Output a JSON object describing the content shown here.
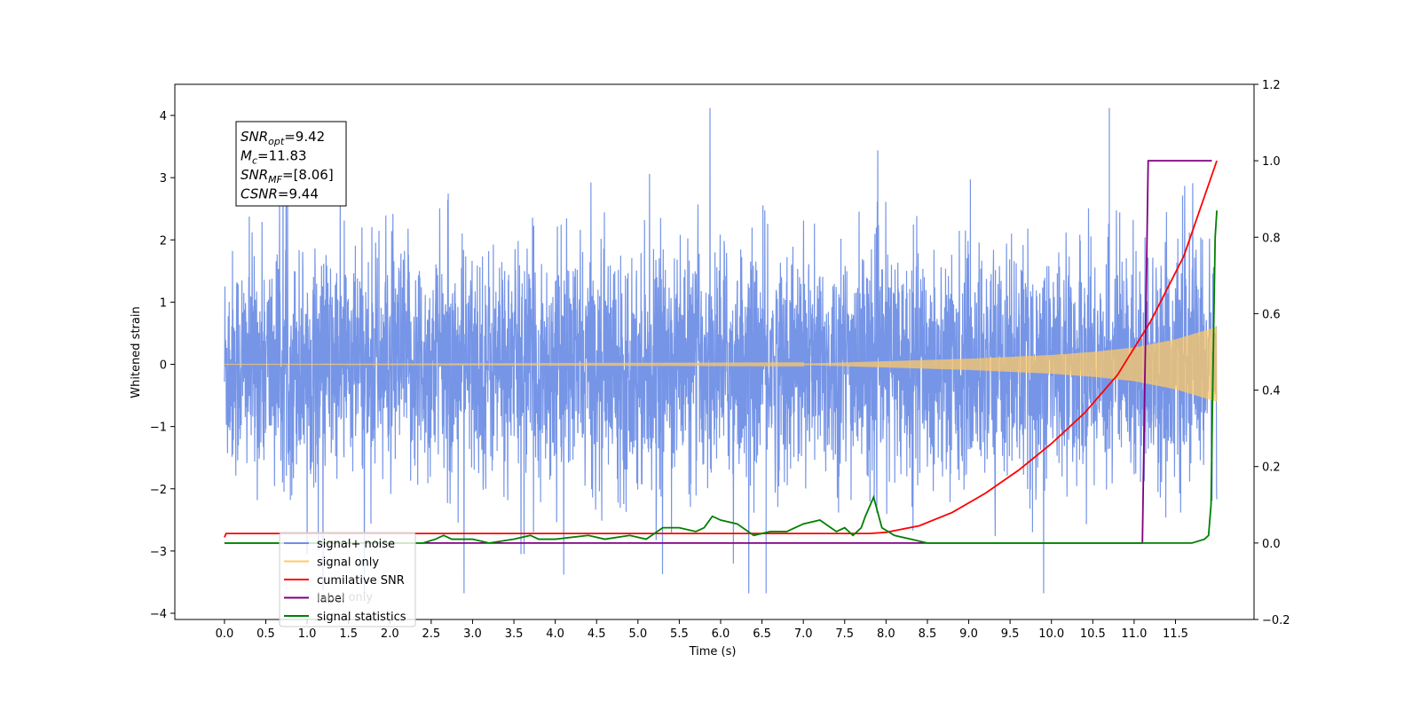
{
  "chart_data": {
    "type": "line",
    "xlabel": "Time (s)",
    "ylabel": "Whitened strain",
    "xlim": [
      -0.6,
      12.45
    ],
    "ylim": [
      -4.1,
      4.5
    ],
    "ylim_right": [
      -0.2,
      1.2
    ],
    "x_ticks": [
      0.0,
      0.5,
      1.0,
      1.5,
      2.0,
      2.5,
      3.0,
      3.5,
      4.0,
      4.5,
      5.0,
      5.5,
      6.0,
      6.5,
      7.0,
      7.5,
      8.0,
      8.5,
      9.0,
      9.5,
      10.0,
      10.5,
      11.0,
      11.5
    ],
    "x_tick_labels": [
      "0.0",
      "0.5",
      "1.0",
      "1.5",
      "2.0",
      "2.5",
      "3.0",
      "3.5",
      "4.0",
      "4.5",
      "5.0",
      "5.5",
      "6.0",
      "6.5",
      "7.0",
      "7.5",
      "8.0",
      "8.5",
      "9.0",
      "9.5",
      "10.0",
      "10.5",
      "11.0",
      "11.5"
    ],
    "y_ticks": [
      -4,
      -3,
      -2,
      -1,
      0,
      1,
      2,
      3,
      4
    ],
    "y_tick_labels": [
      "−4",
      "−3",
      "−2",
      "−1",
      "0",
      "1",
      "2",
      "3",
      "4"
    ],
    "y2_ticks": [
      -0.2,
      0.0,
      0.2,
      0.4,
      0.6,
      0.8,
      1.0,
      1.2
    ],
    "y2_tick_labels": [
      "−0.2",
      "0.0",
      "0.2",
      "0.4",
      "0.6",
      "0.8",
      "1.0",
      "1.2"
    ],
    "grid": false,
    "legend_position": "lower-left",
    "legend": [
      {
        "label": "signal+ noise",
        "color": "#6f8fe6"
      },
      {
        "label": "signal only",
        "color": "#ffc966"
      },
      {
        "label": "cumilative SNR",
        "color": "#ff0000"
      },
      {
        "label": "label",
        "color": "#800080"
      },
      {
        "label": "signal statistics",
        "color": "#008000"
      }
    ],
    "hidden_legend_fragment": "label only",
    "annotation": [
      {
        "main": "SNR",
        "sub": "opt",
        "rest": "=9.42"
      },
      {
        "main": "M",
        "sub": "c",
        "rest": "=11.83"
      },
      {
        "main": "SNR",
        "sub": "MF",
        "rest": "=[8.06]"
      },
      {
        "main": "CSNR",
        "sub": "",
        "rest": "=9.44"
      }
    ],
    "series": [
      {
        "name": "signal+ noise",
        "axis": "left",
        "color": "#6f8fe6",
        "x_range": [
          0.0,
          12.0
        ],
        "typical_amplitude": 1.45,
        "max_value": 4.12,
        "min_value": -3.68
      },
      {
        "name": "signal only",
        "axis": "left",
        "color": "#ffc966",
        "x_range": [
          0.0,
          12.0
        ],
        "envelope_x": [
          0.0,
          7.0,
          8.0,
          9.0,
          10.0,
          10.5,
          11.0,
          11.5,
          12.0
        ],
        "envelope_amp": [
          0.0,
          0.01,
          0.05,
          0.09,
          0.15,
          0.2,
          0.27,
          0.4,
          0.6
        ]
      },
      {
        "name": "cumilative SNR",
        "axis": "right",
        "color": "#ff0000",
        "x": [
          0.0,
          0.02,
          7.8,
          8.0,
          8.4,
          8.8,
          9.2,
          9.6,
          10.0,
          10.4,
          10.8,
          11.2,
          11.6,
          12.0
        ],
        "y": [
          0.015,
          0.025,
          0.025,
          0.028,
          0.045,
          0.08,
          0.13,
          0.19,
          0.26,
          0.34,
          0.44,
          0.58,
          0.75,
          1.0
        ]
      },
      {
        "name": "label",
        "axis": "right",
        "color": "#800080",
        "x": [
          0.0,
          11.1,
          11.17,
          11.94
        ],
        "y": [
          0.0,
          0.0,
          1.0,
          1.0
        ]
      },
      {
        "name": "signal statistics",
        "axis": "right",
        "color": "#008000",
        "x": [
          0.0,
          2.4,
          2.55,
          2.65,
          2.75,
          3.0,
          3.2,
          3.5,
          3.7,
          3.8,
          4.0,
          4.4,
          4.6,
          4.9,
          5.1,
          5.3,
          5.5,
          5.7,
          5.8,
          5.9,
          6.0,
          6.2,
          6.4,
          6.6,
          6.8,
          7.0,
          7.2,
          7.4,
          7.5,
          7.6,
          7.7,
          7.75,
          7.85,
          7.95,
          8.1,
          8.3,
          8.5,
          9.0,
          9.5,
          10.0,
          10.5,
          11.0,
          11.5,
          11.7,
          11.85,
          11.9,
          11.93,
          11.95,
          11.98,
          12.0
        ],
        "y": [
          0.0,
          0.0,
          0.01,
          0.02,
          0.01,
          0.01,
          0.0,
          0.01,
          0.02,
          0.01,
          0.01,
          0.02,
          0.01,
          0.02,
          0.01,
          0.04,
          0.04,
          0.03,
          0.04,
          0.07,
          0.06,
          0.05,
          0.02,
          0.03,
          0.03,
          0.05,
          0.06,
          0.03,
          0.04,
          0.02,
          0.04,
          0.07,
          0.12,
          0.04,
          0.02,
          0.01,
          0.0,
          0.0,
          0.0,
          0.0,
          0.0,
          0.0,
          0.0,
          0.0,
          0.01,
          0.02,
          0.1,
          0.4,
          0.8,
          0.87
        ]
      }
    ]
  }
}
